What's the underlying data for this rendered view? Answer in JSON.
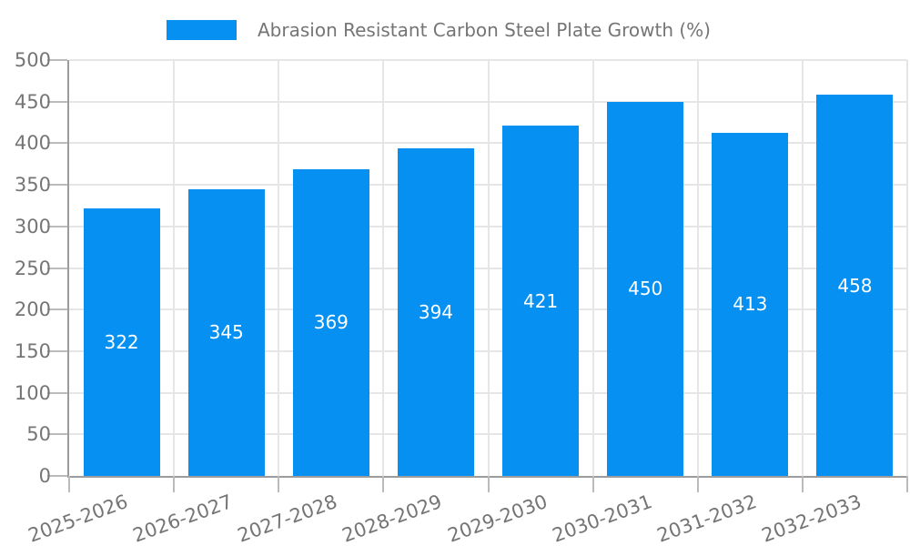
{
  "legend": {
    "label": "Abrasion Resistant Carbon Steel Plate Growth (%)"
  },
  "colors": {
    "bar": "#0590F2",
    "grid": "#E6E6E6",
    "axis": "#9C9C9C",
    "tick": "#BBBBBB",
    "axis_label": "#757575",
    "value_label": "#FFFFFF",
    "background": "#FFFFFF"
  },
  "chart_data": {
    "type": "bar",
    "categories": [
      "2025-2026",
      "2026-2027",
      "2027-2028",
      "2028-2029",
      "2029-2030",
      "2030-2031",
      "2031-2032",
      "2032-2033"
    ],
    "series": [
      {
        "name": "Abrasion Resistant Carbon Steel Plate Growth (%)",
        "values": [
          322,
          345,
          369,
          394,
          421,
          450,
          413,
          458
        ]
      }
    ],
    "title": "",
    "xlabel": "",
    "ylabel": "",
    "ylim": [
      0,
      500
    ],
    "ytick_step": 50,
    "grid": true,
    "legend_position": "top",
    "bar_value_labels": true,
    "xtick_rotation_deg": -20
  }
}
